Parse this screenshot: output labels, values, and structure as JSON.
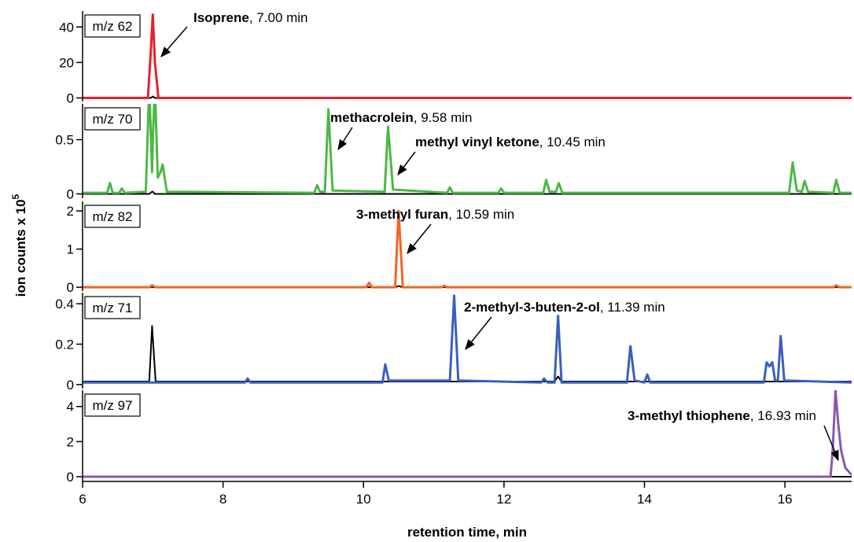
{
  "x_axis": {
    "label": "retention time, min",
    "xlim": [
      6,
      16.95
    ],
    "xticks": [
      6,
      8,
      10,
      12,
      14,
      16
    ]
  },
  "y_axis_label": {
    "text": "ion counts x 10",
    "exponent": "5"
  },
  "chart_data": [
    {
      "type": "line",
      "label": "m/z 62",
      "ylim": [
        -2,
        49
      ],
      "yticks": [
        0,
        20,
        40
      ],
      "x": [
        6,
        6.93,
        6.97,
        7.0,
        7.03,
        7.08,
        16.95
      ],
      "series": [
        {
          "color": "#000000",
          "values": [
            0,
            0,
            0,
            0.8,
            0,
            0,
            0
          ]
        },
        {
          "color": "#e8202a",
          "values": [
            0,
            0,
            25,
            47,
            20,
            0,
            0
          ]
        }
      ],
      "annotations": [
        {
          "compound": "Isoprene",
          "detail": ", 7.00 min"
        }
      ]
    },
    {
      "type": "line",
      "label": "m/z 70",
      "ylim": [
        -0.04,
        0.83
      ],
      "yticks": [
        0,
        0.5
      ],
      "x": [
        6,
        6.35,
        6.39,
        6.43,
        6.52,
        6.56,
        6.6,
        6.9,
        6.95,
        6.99,
        7.0,
        7.03,
        7.07,
        7.11,
        7.14,
        7.2,
        9.3,
        9.34,
        9.38,
        9.45,
        9.5,
        9.56,
        10.3,
        10.35,
        10.42,
        11.19,
        11.23,
        11.27,
        11.92,
        11.96,
        12.0,
        12.56,
        12.6,
        12.65,
        12.74,
        12.78,
        12.83,
        16.06,
        16.11,
        16.17,
        16.24,
        16.28,
        16.33,
        16.69,
        16.73,
        16.78,
        16.95
      ],
      "series": [
        {
          "color": "#000000",
          "values": [
            0,
            0,
            0,
            0,
            0,
            0,
            0,
            0,
            0,
            0.02,
            0.02,
            0,
            0,
            0,
            0,
            0,
            0,
            0,
            0,
            0,
            0,
            0,
            0,
            0,
            0,
            0,
            0,
            0,
            0,
            0,
            0,
            0,
            0,
            0,
            0,
            0,
            0,
            0,
            0,
            0,
            0,
            0,
            0,
            0,
            0,
            0,
            0
          ]
        },
        {
          "color": "#4cb848",
          "values": [
            0.01,
            0.01,
            0.1,
            0.01,
            0.01,
            0.05,
            0.01,
            0.02,
            1.0,
            0.2,
            0.5,
            1.0,
            0.15,
            0.2,
            0.27,
            0.02,
            0.01,
            0.08,
            0.02,
            0.02,
            0.78,
            0.03,
            0.02,
            0.62,
            0.04,
            0.01,
            0.06,
            0.01,
            0.01,
            0.05,
            0.01,
            0.01,
            0.13,
            0.02,
            0.02,
            0.1,
            0.01,
            0.01,
            0.29,
            0.03,
            0.02,
            0.12,
            0.02,
            0.01,
            0.13,
            0.01,
            0.01
          ]
        }
      ],
      "annotations": [
        {
          "compound": "methacrolein",
          "detail": ", 9.58 min"
        },
        {
          "compound": "methyl vinyl ketone",
          "detail": ", 10.45 min"
        }
      ]
    },
    {
      "type": "line",
      "label": "m/z 82",
      "ylim": [
        -0.1,
        2.25
      ],
      "yticks": [
        0,
        1,
        2
      ],
      "x": [
        6,
        6.95,
        6.99,
        7.04,
        10.04,
        10.08,
        10.12,
        10.45,
        10.5,
        10.56,
        11.11,
        11.15,
        11.19,
        16.69,
        16.73,
        16.78,
        16.95
      ],
      "series": [
        {
          "color": "#000000",
          "values": [
            0,
            0,
            0,
            0,
            0,
            0,
            0,
            0,
            0.03,
            0,
            0,
            0,
            0,
            0,
            0,
            0,
            0
          ]
        },
        {
          "color": "#f26522",
          "values": [
            0,
            0,
            0.05,
            0,
            0,
            0.12,
            0,
            0,
            2.0,
            0,
            0,
            0.04,
            0,
            0,
            0.05,
            0,
            0
          ]
        }
      ],
      "annotations": [
        {
          "compound": "3-methyl furan",
          "detail": ", 10.59 min"
        }
      ]
    },
    {
      "type": "line",
      "label": "m/z 71",
      "ylim": [
        -0.02,
        0.455
      ],
      "yticks": [
        0,
        0.2,
        0.4
      ],
      "x": [
        6,
        6.95,
        6.99,
        7.04,
        8.31,
        8.35,
        8.39,
        10.27,
        10.31,
        10.36,
        11.23,
        11.29,
        11.35,
        12.53,
        12.57,
        12.62,
        12.72,
        12.77,
        12.82,
        13.75,
        13.8,
        13.86,
        14.0,
        14.04,
        14.08,
        15.7,
        15.74,
        15.78,
        15.82,
        15.86,
        15.9,
        15.94,
        15.99,
        16.95
      ],
      "series": [
        {
          "color": "#000000",
          "values": [
            0.015,
            0.015,
            0.29,
            0.015,
            0.015,
            0.015,
            0.015,
            0.015,
            0.015,
            0.015,
            0.015,
            0.015,
            0.015,
            0.015,
            0.015,
            0.015,
            0.015,
            0.04,
            0.015,
            0.015,
            0.015,
            0.015,
            0.015,
            0.015,
            0.015,
            0.015,
            0.015,
            0.015,
            0.015,
            0.015,
            0.015,
            0.015,
            0.015,
            0.015
          ]
        },
        {
          "color": "#3a5fbf",
          "values": [
            0.01,
            0.01,
            0.01,
            0.01,
            0.01,
            0.03,
            0.01,
            0.01,
            0.1,
            0.02,
            0.02,
            0.44,
            0.02,
            0.01,
            0.03,
            0.01,
            0.01,
            0.34,
            0.01,
            0.01,
            0.19,
            0.02,
            0.01,
            0.05,
            0.01,
            0.01,
            0.11,
            0.09,
            0.11,
            0.02,
            0.02,
            0.24,
            0.02,
            0.01
          ]
        }
      ],
      "annotations": [
        {
          "compound": "2-methyl-3-buten-2-ol",
          "detail": ", 11.39 min"
        }
      ]
    },
    {
      "type": "line",
      "label": "m/z 97",
      "ylim": [
        -0.27,
        4.93
      ],
      "yticks": [
        0,
        2,
        4
      ],
      "x": [
        6,
        16.65,
        16.68,
        16.72,
        16.76,
        16.8,
        16.86,
        16.95
      ],
      "series": [
        {
          "color": "#000000",
          "values": [
            0,
            0,
            0,
            0,
            0,
            0,
            0,
            0
          ]
        },
        {
          "color": "#8858b0",
          "values": [
            0,
            0,
            1.5,
            4.9,
            3.0,
            1.5,
            0.5,
            0.1
          ]
        }
      ],
      "annotations": [
        {
          "compound": "3-methyl thiophene",
          "detail": ", 16.93 min"
        }
      ]
    }
  ]
}
